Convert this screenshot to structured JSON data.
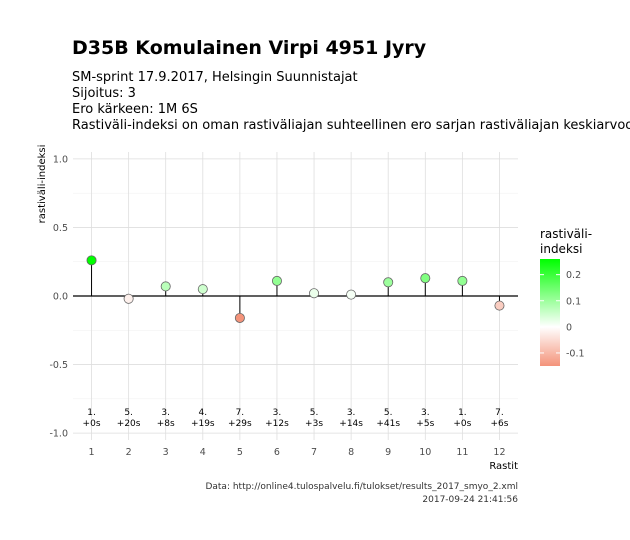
{
  "header": {
    "title": "D35B Komulainen Virpi 4951 Jyry",
    "subtitle_lines": [
      "SM-sprint 17.9.2017, Helsingin Suunnistajat",
      "Sijoitus: 3",
      "Ero kärkeen: 1M 6S",
      "Rastiväli-indeksi on oman rastiväliajan suhteellinen ero sarjan rastiväliajan keskiarvoon"
    ]
  },
  "caption": {
    "line1": "Data: http://online4.tulospalvelu.fi/tulokset/results_2017_smyo_2.xml",
    "line2": "2017-09-24 21:41:56"
  },
  "chart_data": {
    "type": "scatter",
    "xlabel": "Rastit",
    "ylabel": "rastiväli-indeksi",
    "x": [
      1,
      2,
      3,
      4,
      5,
      6,
      7,
      8,
      9,
      10,
      11,
      12
    ],
    "values": [
      0.26,
      -0.02,
      0.07,
      0.05,
      -0.16,
      0.11,
      0.02,
      0.01,
      0.1,
      0.13,
      0.11,
      -0.07
    ],
    "point_labels_rank": [
      "1.",
      "5.",
      "3.",
      "4.",
      "7.",
      "3.",
      "5.",
      "3.",
      "5.",
      "3.",
      "1.",
      "7."
    ],
    "point_labels_diff": [
      "+0s",
      "+20s",
      "+8s",
      "+19s",
      "+29s",
      "+12s",
      "+3s",
      "+14s",
      "+41s",
      "+5s",
      "+0s",
      "+6s"
    ],
    "xlim": [
      0.5,
      12.5
    ],
    "ylim": [
      -1.05,
      1.05
    ],
    "yticks": [
      -1.0,
      -0.5,
      0.0,
      0.5,
      1.0
    ],
    "ytick_labels": [
      "-1.0",
      "-0.5",
      "0.0",
      "0.5",
      "1.0"
    ],
    "xticks": [
      1,
      2,
      3,
      4,
      5,
      6,
      7,
      8,
      9,
      10,
      11,
      12
    ],
    "grid": true,
    "legend": {
      "title_lines": [
        "rastiväli-",
        "indeksi"
      ],
      "ticks": [
        0.2,
        0.1,
        0.0,
        -0.1
      ],
      "tick_labels": [
        "0.2",
        "0.1",
        "0",
        "-0.1"
      ],
      "range": [
        -0.15,
        0.26
      ],
      "placement": "right",
      "color_high": "#00ff00",
      "color_mid": "#ffffff",
      "color_low": "#f4937a"
    }
  }
}
